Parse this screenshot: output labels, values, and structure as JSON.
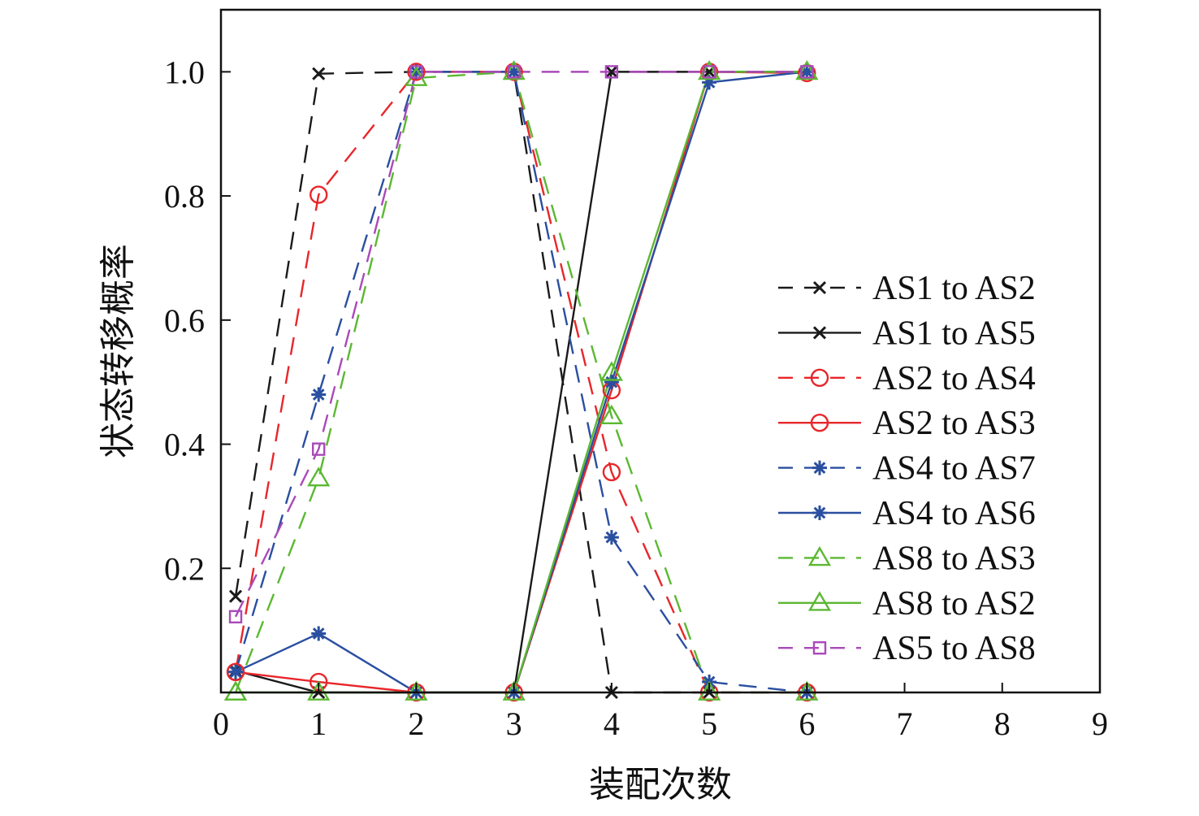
{
  "chart_data": {
    "type": "line",
    "xlabel": "装配次数",
    "ylabel": "状态转移概率",
    "xlim": [
      0,
      9
    ],
    "ylim": [
      0,
      1.1
    ],
    "xticks": [
      "0",
      "1",
      "2",
      "3",
      "4",
      "5",
      "6",
      "7",
      "8",
      "9"
    ],
    "yticks": [
      "0.2",
      "0.4",
      "0.6",
      "0.8",
      "1.0"
    ],
    "grid": false,
    "legend_position": "right",
    "x": [
      0.15,
      1,
      2,
      3,
      4,
      5,
      6
    ],
    "series": [
      {
        "name": "AS1 to AS2",
        "values": [
          0.155,
          0.997,
          1.0,
          1.0,
          0.0,
          0.0,
          0.0
        ],
        "color": "#1a1a1a",
        "dash": "dashed",
        "marker": "x"
      },
      {
        "name": "AS1 to AS5",
        "values": [
          0.035,
          0.0,
          0.0,
          0.0,
          1.0,
          1.0,
          1.0
        ],
        "color": "#1a1a1a",
        "dash": "solid",
        "marker": "x"
      },
      {
        "name": "AS2 to AS4",
        "values": [
          0.033,
          0.802,
          1.0,
          1.0,
          0.355,
          0.0,
          0.0
        ],
        "color": "#e8262a",
        "dash": "dashed",
        "marker": "circle"
      },
      {
        "name": "AS2 to AS3",
        "values": [
          0.033,
          0.017,
          0.0,
          0.0,
          0.487,
          1.0,
          0.998
        ],
        "color": "#e8262a",
        "dash": "solid",
        "marker": "circle"
      },
      {
        "name": "AS4 to AS7",
        "values": [
          0.033,
          0.48,
          1.0,
          1.0,
          0.25,
          0.017,
          0.0
        ],
        "color": "#2a4fa0",
        "dash": "dashed",
        "marker": "star"
      },
      {
        "name": "AS4 to AS6",
        "values": [
          0.033,
          0.095,
          0.0,
          0.0,
          0.5,
          0.983,
          1.0
        ],
        "color": "#2a4fa0",
        "dash": "solid",
        "marker": "star"
      },
      {
        "name": "AS8 to AS3",
        "values": [
          0.0,
          0.345,
          0.99,
          1.0,
          0.445,
          0.0,
          0.0
        ],
        "color": "#5bb832",
        "dash": "dashed",
        "marker": "triangle"
      },
      {
        "name": "AS8 to AS2",
        "values": [
          0.0,
          0.0,
          0.0,
          0.0,
          0.515,
          1.0,
          1.0
        ],
        "color": "#5bb832",
        "dash": "solid",
        "marker": "triangle"
      },
      {
        "name": "AS5 to AS8",
        "values": [
          0.122,
          0.392,
          1.0,
          1.0,
          1.0,
          1.0,
          1.0
        ],
        "color": "#a94ab8",
        "dash": "dashed",
        "marker": "square"
      }
    ]
  }
}
